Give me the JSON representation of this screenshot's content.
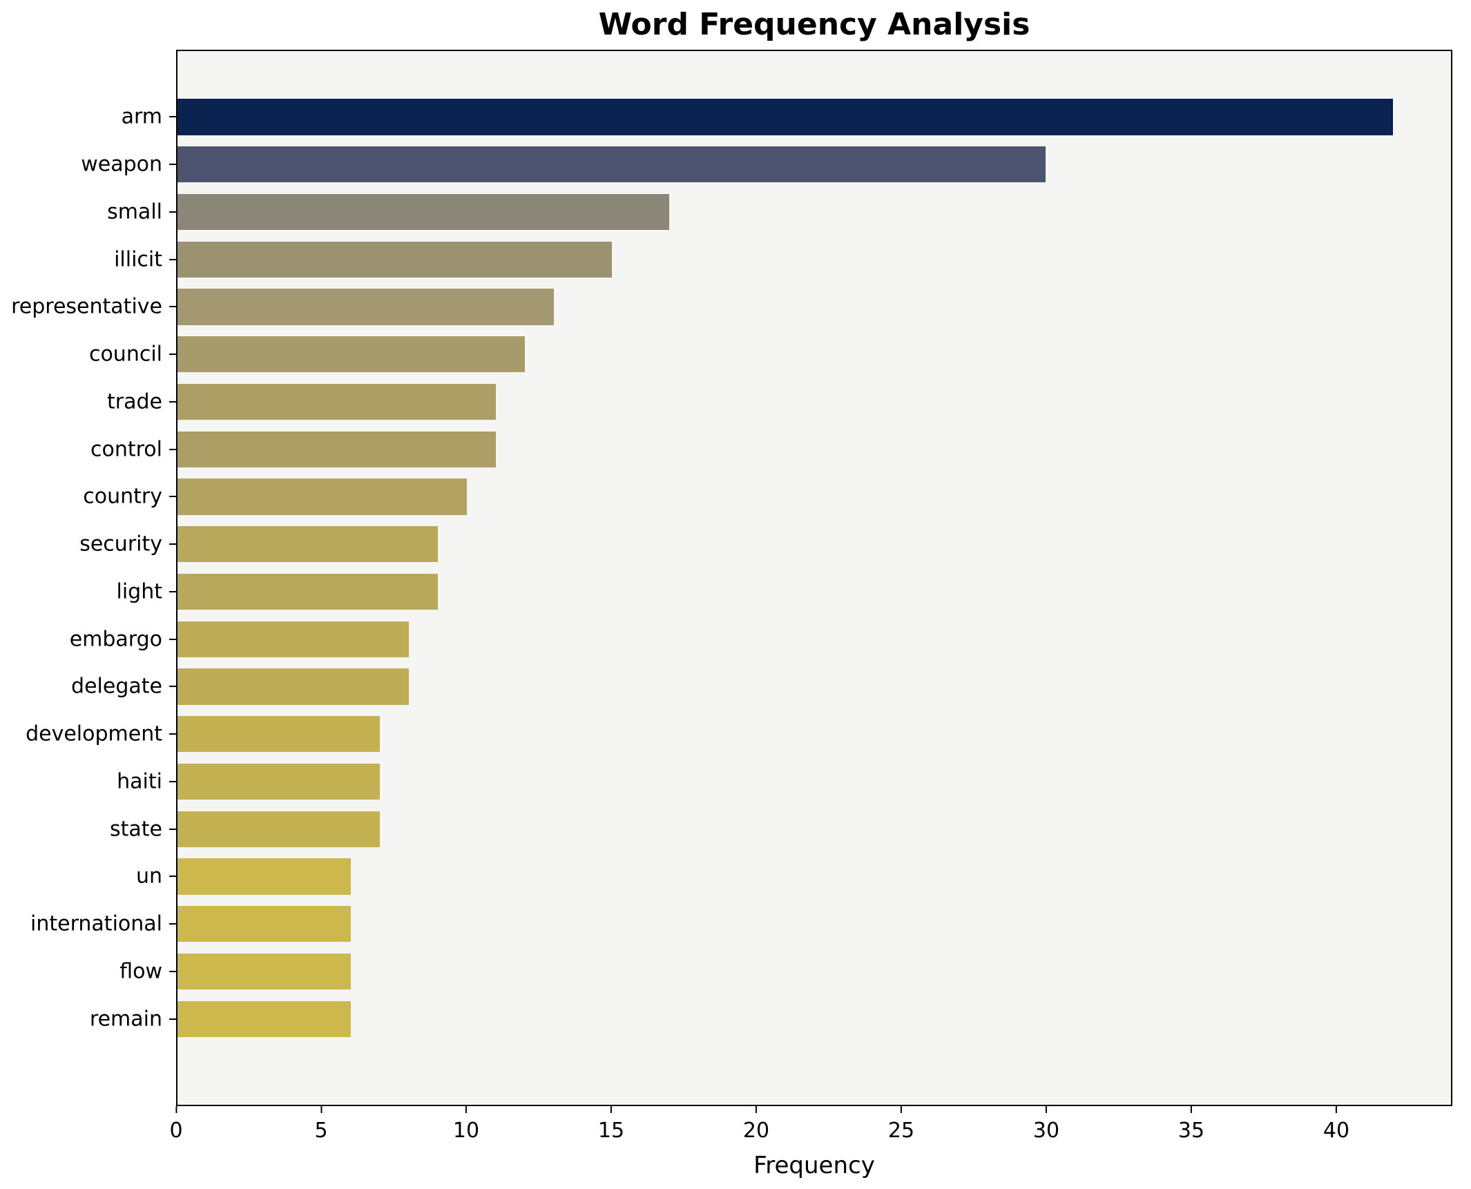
{
  "chart_data": {
    "type": "bar",
    "orientation": "horizontal",
    "title": "Word Frequency Analysis",
    "xlabel": "Frequency",
    "ylabel": "",
    "xlim": [
      0,
      44
    ],
    "xticks": [
      0,
      5,
      10,
      15,
      20,
      25,
      30,
      35,
      40
    ],
    "grid": false,
    "legend": "none",
    "plot_background": "#f5f5f3",
    "figure_background": "#ffffff",
    "categories": [
      "arm",
      "weapon",
      "small",
      "illicit",
      "representative",
      "council",
      "trade",
      "control",
      "country",
      "security",
      "light",
      "embargo",
      "delegate",
      "development",
      "haiti",
      "state",
      "un",
      "international",
      "flow",
      "remain"
    ],
    "values": [
      42,
      30,
      17,
      15,
      13,
      12,
      11,
      11,
      10,
      9,
      9,
      8,
      8,
      7,
      7,
      7,
      6,
      6,
      6,
      6
    ],
    "bar_colors": [
      "#0a2250",
      "#4d5470",
      "#8a8779",
      "#9a9270",
      "#a39870",
      "#a89b6b",
      "#ac9f66",
      "#ac9f66",
      "#b2a460",
      "#b8a85c",
      "#b8a85c",
      "#beac57",
      "#beac57",
      "#c4b152",
      "#c4b152",
      "#c4b152",
      "#ccb84d",
      "#ccb84d",
      "#ccb84d",
      "#ccb84d"
    ]
  }
}
